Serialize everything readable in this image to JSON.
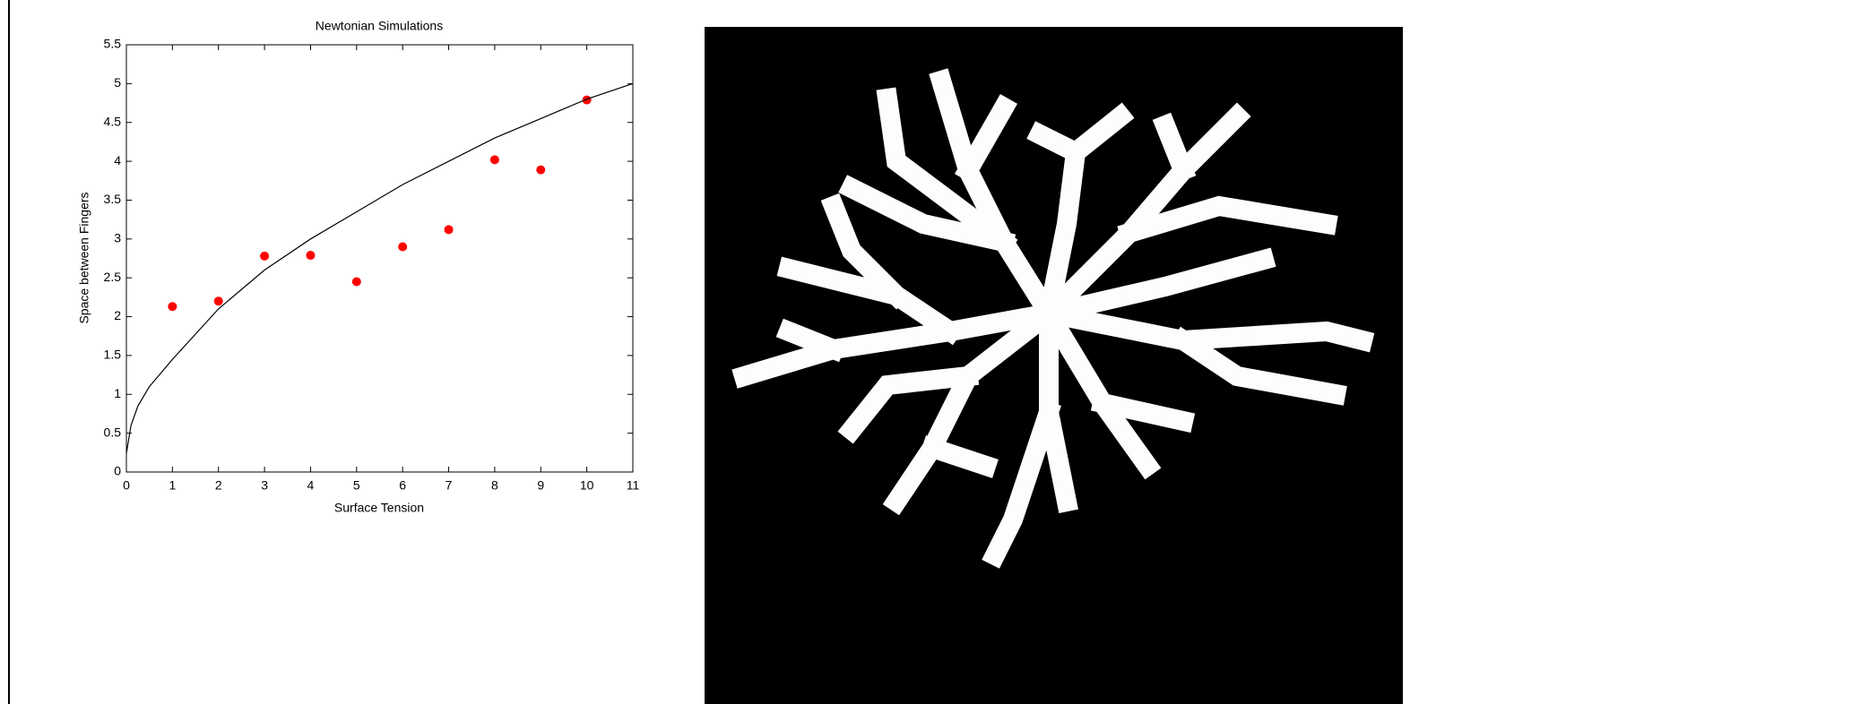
{
  "chart_data": {
    "type": "scatter",
    "title": "Newtonian Simulations",
    "x_label": "Surface Tension",
    "y_label": "Space between Fingers",
    "xlim": [
      0,
      11
    ],
    "ylim": [
      0,
      5.5
    ],
    "xticks": [
      0,
      1,
      2,
      3,
      4,
      5,
      6,
      7,
      8,
      9,
      10,
      11
    ],
    "yticks": [
      0,
      0.5,
      1,
      1.5,
      2,
      2.5,
      3,
      3.5,
      4,
      4.5,
      5,
      5.5
    ],
    "series": [
      {
        "type": "scatter",
        "color": "#ff0000",
        "x": [
          1,
          2,
          3,
          4,
          5,
          6,
          7,
          8,
          9,
          10
        ],
        "values": [
          2.13,
          2.2,
          2.78,
          2.79,
          2.45,
          2.9,
          3.12,
          4.02,
          3.89,
          4.79
        ]
      },
      {
        "type": "line",
        "color": "#000000",
        "x": [
          0,
          0.1,
          0.25,
          0.5,
          1,
          2,
          3,
          4,
          5,
          6,
          7,
          8,
          9,
          10,
          11
        ],
        "values": [
          0.24,
          0.6,
          0.85,
          1.1,
          1.45,
          2.1,
          2.6,
          3.0,
          3.35,
          3.7,
          4.0,
          4.3,
          4.55,
          4.8,
          5.0
        ]
      }
    ]
  }
}
